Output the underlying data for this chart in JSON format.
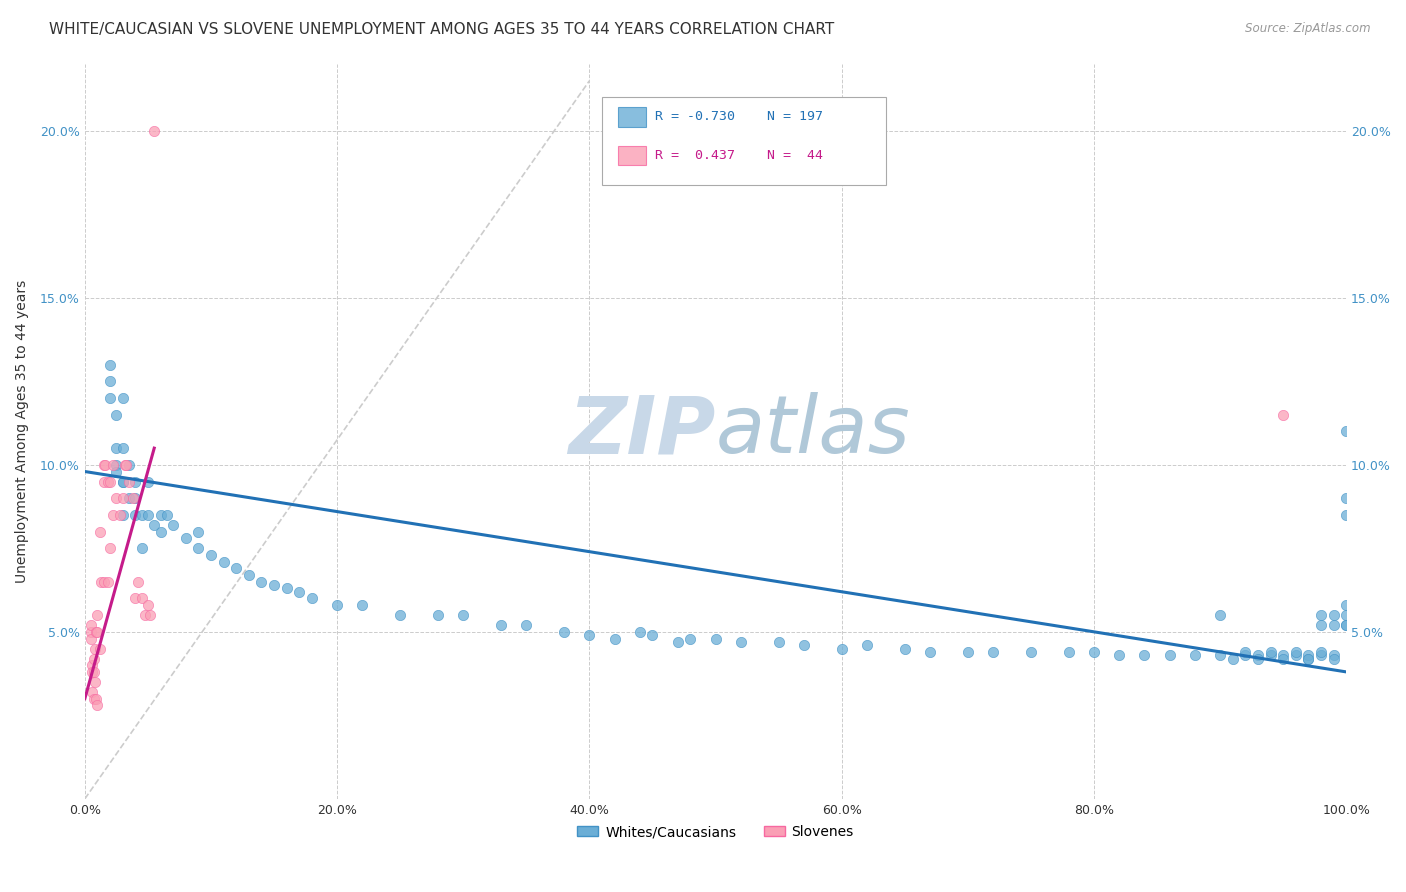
{
  "title": "WHITE/CAUCASIAN VS SLOVENE UNEMPLOYMENT AMONG AGES 35 TO 44 YEARS CORRELATION CHART",
  "source": "Source: ZipAtlas.com",
  "xlabel_ticks": [
    "0.0%",
    "20.0%",
    "40.0%",
    "60.0%",
    "80.0%",
    "100.0%"
  ],
  "xlabel_tick_vals": [
    0.0,
    0.2,
    0.4,
    0.6,
    0.8,
    1.0
  ],
  "ylabel_ticks": [
    "5.0%",
    "10.0%",
    "15.0%",
    "20.0%"
  ],
  "ylabel_tick_vals": [
    0.05,
    0.1,
    0.15,
    0.2
  ],
  "ylabel": "Unemployment Among Ages 35 to 44 years",
  "legend_blue_label": "Whites/Caucasians",
  "legend_pink_label": "Slovenes",
  "blue_R": "-0.730",
  "blue_N": "197",
  "pink_R": "0.437",
  "pink_N": "44",
  "blue_color": "#6baed6",
  "pink_color": "#fa9fb5",
  "blue_line_color": "#2171b5",
  "pink_line_color": "#c51b8a",
  "blue_marker_edge": "#4292c6",
  "pink_marker_edge": "#f768a1",
  "watermark_color": "#c8d8e8",
  "xlim": [
    0.0,
    1.0
  ],
  "ylim": [
    0.0,
    0.22
  ],
  "blue_scatter_x": [
    0.02,
    0.02,
    0.02,
    0.025,
    0.025,
    0.025,
    0.025,
    0.03,
    0.03,
    0.03,
    0.03,
    0.03,
    0.035,
    0.035,
    0.04,
    0.04,
    0.04,
    0.045,
    0.045,
    0.05,
    0.05,
    0.055,
    0.06,
    0.06,
    0.065,
    0.07,
    0.08,
    0.09,
    0.09,
    0.1,
    0.11,
    0.12,
    0.13,
    0.14,
    0.15,
    0.16,
    0.17,
    0.18,
    0.2,
    0.22,
    0.25,
    0.28,
    0.3,
    0.33,
    0.35,
    0.38,
    0.4,
    0.42,
    0.44,
    0.45,
    0.47,
    0.48,
    0.5,
    0.52,
    0.55,
    0.57,
    0.6,
    0.62,
    0.65,
    0.67,
    0.7,
    0.72,
    0.75,
    0.78,
    0.8,
    0.82,
    0.84,
    0.86,
    0.88,
    0.9,
    0.9,
    0.91,
    0.92,
    0.92,
    0.93,
    0.93,
    0.94,
    0.94,
    0.95,
    0.95,
    0.96,
    0.96,
    0.97,
    0.97,
    0.97,
    0.98,
    0.98,
    0.98,
    0.98,
    0.99,
    0.99,
    0.99,
    0.99,
    1.0,
    1.0,
    1.0,
    1.0,
    1.0,
    1.0,
    1.0
  ],
  "blue_scatter_y": [
    0.13,
    0.125,
    0.12,
    0.115,
    0.105,
    0.1,
    0.098,
    0.12,
    0.105,
    0.095,
    0.085,
    0.095,
    0.1,
    0.09,
    0.09,
    0.085,
    0.095,
    0.085,
    0.075,
    0.095,
    0.085,
    0.082,
    0.085,
    0.08,
    0.085,
    0.082,
    0.078,
    0.075,
    0.08,
    0.073,
    0.071,
    0.069,
    0.067,
    0.065,
    0.064,
    0.063,
    0.062,
    0.06,
    0.058,
    0.058,
    0.055,
    0.055,
    0.055,
    0.052,
    0.052,
    0.05,
    0.049,
    0.048,
    0.05,
    0.049,
    0.047,
    0.048,
    0.048,
    0.047,
    0.047,
    0.046,
    0.045,
    0.046,
    0.045,
    0.044,
    0.044,
    0.044,
    0.044,
    0.044,
    0.044,
    0.043,
    0.043,
    0.043,
    0.043,
    0.055,
    0.043,
    0.042,
    0.043,
    0.044,
    0.043,
    0.042,
    0.043,
    0.044,
    0.043,
    0.042,
    0.043,
    0.044,
    0.042,
    0.043,
    0.042,
    0.043,
    0.044,
    0.052,
    0.055,
    0.043,
    0.042,
    0.052,
    0.055,
    0.052,
    0.058,
    0.055,
    0.09,
    0.085,
    0.052,
    0.11
  ],
  "pink_scatter_x": [
    0.005,
    0.005,
    0.005,
    0.006,
    0.006,
    0.006,
    0.007,
    0.007,
    0.007,
    0.008,
    0.008,
    0.009,
    0.009,
    0.01,
    0.01,
    0.01,
    0.012,
    0.012,
    0.013,
    0.015,
    0.015,
    0.015,
    0.016,
    0.018,
    0.018,
    0.02,
    0.02,
    0.022,
    0.022,
    0.025,
    0.028,
    0.03,
    0.032,
    0.033,
    0.035,
    0.038,
    0.04,
    0.042,
    0.045,
    0.048,
    0.05,
    0.052,
    0.055,
    0.95
  ],
  "pink_scatter_y": [
    0.05,
    0.048,
    0.052,
    0.04,
    0.038,
    0.032,
    0.042,
    0.038,
    0.03,
    0.045,
    0.035,
    0.05,
    0.03,
    0.055,
    0.05,
    0.028,
    0.08,
    0.045,
    0.065,
    0.1,
    0.095,
    0.065,
    0.1,
    0.095,
    0.065,
    0.095,
    0.075,
    0.1,
    0.085,
    0.09,
    0.085,
    0.09,
    0.1,
    0.1,
    0.095,
    0.09,
    0.06,
    0.065,
    0.06,
    0.055,
    0.058,
    0.055,
    0.2,
    0.115
  ],
  "blue_line_x": [
    0.0,
    1.0
  ],
  "blue_line_y_start": 0.098,
  "blue_line_y_end": 0.038,
  "pink_line_x": [
    0.0,
    0.055
  ],
  "pink_line_y_start": 0.03,
  "pink_line_y_end": 0.105,
  "diag_line_x": [
    0.0,
    0.4
  ],
  "diag_line_y_start": 0.0,
  "diag_line_y_end": 0.215,
  "grid_color": "#cccccc",
  "bg_color": "#ffffff",
  "title_fontsize": 11,
  "label_fontsize": 10,
  "tick_fontsize": 9,
  "scatter_size": 55
}
